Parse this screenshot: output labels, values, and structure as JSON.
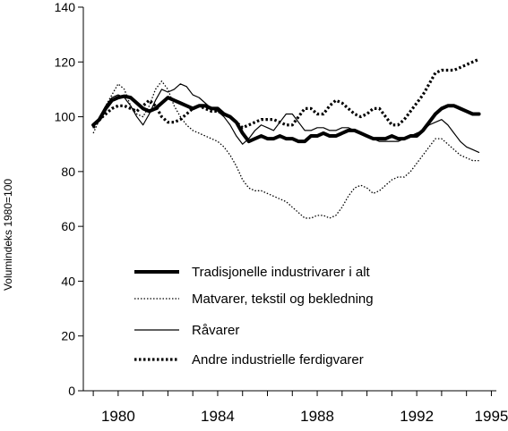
{
  "chart_data": {
    "type": "line",
    "title": "",
    "xlabel": "",
    "ylabel": "Volumindeks 1980=100",
    "xlim": [
      1978.6,
      1995.2
    ],
    "ylim": [
      0,
      140
    ],
    "x_ticks": [
      1980,
      1984,
      1988,
      1992,
      1995
    ],
    "y_ticks": [
      0,
      20,
      40,
      60,
      80,
      100,
      120,
      140
    ],
    "grid": false,
    "legend_position": "lower-center",
    "series": [
      {
        "name": "Tradisjonelle industrivarer i alt",
        "style": "thick-solid",
        "color": "#000000",
        "points": [
          [
            1979.0,
            97
          ],
          [
            1979.25,
            99
          ],
          [
            1979.5,
            103
          ],
          [
            1979.75,
            106
          ],
          [
            1980.0,
            107
          ],
          [
            1980.25,
            107.5
          ],
          [
            1980.5,
            107
          ],
          [
            1980.75,
            105
          ],
          [
            1981.0,
            103
          ],
          [
            1981.25,
            102
          ],
          [
            1981.5,
            103
          ],
          [
            1981.75,
            105
          ],
          [
            1982.0,
            107
          ],
          [
            1982.25,
            106
          ],
          [
            1982.5,
            105
          ],
          [
            1982.75,
            104
          ],
          [
            1983.0,
            103
          ],
          [
            1983.25,
            104
          ],
          [
            1983.5,
            104
          ],
          [
            1983.75,
            103
          ],
          [
            1984.0,
            103
          ],
          [
            1984.25,
            101
          ],
          [
            1984.5,
            100
          ],
          [
            1984.75,
            98
          ],
          [
            1985.0,
            94
          ],
          [
            1985.25,
            91
          ],
          [
            1985.5,
            92
          ],
          [
            1985.75,
            93
          ],
          [
            1986.0,
            92
          ],
          [
            1986.25,
            92
          ],
          [
            1986.5,
            93
          ],
          [
            1986.75,
            92
          ],
          [
            1987.0,
            92
          ],
          [
            1987.25,
            91
          ],
          [
            1987.5,
            91
          ],
          [
            1987.75,
            93
          ],
          [
            1988.0,
            93
          ],
          [
            1988.25,
            94
          ],
          [
            1988.5,
            93
          ],
          [
            1988.75,
            93
          ],
          [
            1989.0,
            94
          ],
          [
            1989.25,
            95
          ],
          [
            1989.5,
            95
          ],
          [
            1989.75,
            94
          ],
          [
            1990.0,
            93
          ],
          [
            1990.25,
            92
          ],
          [
            1990.5,
            92
          ],
          [
            1990.75,
            92
          ],
          [
            1991.0,
            93
          ],
          [
            1991.25,
            92
          ],
          [
            1991.5,
            92
          ],
          [
            1991.75,
            93
          ],
          [
            1992.0,
            93
          ],
          [
            1992.25,
            95
          ],
          [
            1992.5,
            98
          ],
          [
            1992.75,
            101
          ],
          [
            1993.0,
            103
          ],
          [
            1993.25,
            104
          ],
          [
            1993.5,
            104
          ],
          [
            1993.75,
            103
          ],
          [
            1994.0,
            102
          ],
          [
            1994.25,
            101
          ],
          [
            1994.5,
            101
          ]
        ]
      },
      {
        "name": "Matvarer, tekstil og bekledning",
        "style": "thin-dotted",
        "color": "#000000",
        "points": [
          [
            1979.0,
            94
          ],
          [
            1979.25,
            99
          ],
          [
            1979.5,
            104
          ],
          [
            1979.75,
            108
          ],
          [
            1980.0,
            112
          ],
          [
            1980.25,
            110
          ],
          [
            1980.5,
            104
          ],
          [
            1980.75,
            101
          ],
          [
            1981.0,
            100
          ],
          [
            1981.25,
            104
          ],
          [
            1981.5,
            110
          ],
          [
            1981.75,
            113
          ],
          [
            1982.0,
            110
          ],
          [
            1982.25,
            104
          ],
          [
            1982.5,
            100
          ],
          [
            1982.75,
            97
          ],
          [
            1983.0,
            95
          ],
          [
            1983.25,
            94
          ],
          [
            1983.5,
            93
          ],
          [
            1983.75,
            92
          ],
          [
            1984.0,
            91
          ],
          [
            1984.25,
            89
          ],
          [
            1984.5,
            86
          ],
          [
            1984.75,
            82
          ],
          [
            1985.0,
            77
          ],
          [
            1985.25,
            74
          ],
          [
            1985.5,
            73
          ],
          [
            1985.75,
            73
          ],
          [
            1986.0,
            72
          ],
          [
            1986.25,
            71
          ],
          [
            1986.5,
            70
          ],
          [
            1986.75,
            69
          ],
          [
            1987.0,
            67
          ],
          [
            1987.25,
            65
          ],
          [
            1987.5,
            63
          ],
          [
            1987.75,
            63
          ],
          [
            1988.0,
            64
          ],
          [
            1988.25,
            64
          ],
          [
            1988.5,
            63
          ],
          [
            1988.75,
            64
          ],
          [
            1989.0,
            67
          ],
          [
            1989.25,
            71
          ],
          [
            1989.5,
            74
          ],
          [
            1989.75,
            75
          ],
          [
            1990.0,
            74
          ],
          [
            1990.25,
            72
          ],
          [
            1990.5,
            73
          ],
          [
            1990.75,
            75
          ],
          [
            1991.0,
            77
          ],
          [
            1991.25,
            78
          ],
          [
            1991.5,
            78
          ],
          [
            1991.75,
            80
          ],
          [
            1992.0,
            83
          ],
          [
            1992.25,
            86
          ],
          [
            1992.5,
            89
          ],
          [
            1992.75,
            92
          ],
          [
            1993.0,
            92
          ],
          [
            1993.25,
            90
          ],
          [
            1993.5,
            88
          ],
          [
            1993.75,
            86
          ],
          [
            1994.0,
            85
          ],
          [
            1994.25,
            84
          ],
          [
            1994.5,
            84
          ]
        ]
      },
      {
        "name": "Råvarer",
        "style": "thin-solid",
        "color": "#000000",
        "points": [
          [
            1979.0,
            96
          ],
          [
            1979.25,
            100
          ],
          [
            1979.5,
            104
          ],
          [
            1979.75,
            107
          ],
          [
            1980.0,
            108
          ],
          [
            1980.25,
            107
          ],
          [
            1980.5,
            104
          ],
          [
            1980.75,
            100
          ],
          [
            1981.0,
            97
          ],
          [
            1981.25,
            101
          ],
          [
            1981.5,
            106
          ],
          [
            1981.75,
            110
          ],
          [
            1982.0,
            109
          ],
          [
            1982.25,
            110
          ],
          [
            1982.5,
            112
          ],
          [
            1982.75,
            111
          ],
          [
            1983.0,
            108
          ],
          [
            1983.25,
            107
          ],
          [
            1983.5,
            105
          ],
          [
            1983.75,
            103
          ],
          [
            1984.0,
            102
          ],
          [
            1984.25,
            100
          ],
          [
            1984.5,
            97
          ],
          [
            1984.75,
            93
          ],
          [
            1985.0,
            90
          ],
          [
            1985.25,
            92
          ],
          [
            1985.5,
            95
          ],
          [
            1985.75,
            97
          ],
          [
            1986.0,
            96
          ],
          [
            1986.25,
            95
          ],
          [
            1986.5,
            98
          ],
          [
            1986.75,
            101
          ],
          [
            1987.0,
            101
          ],
          [
            1987.25,
            98
          ],
          [
            1987.5,
            95
          ],
          [
            1987.75,
            95
          ],
          [
            1988.0,
            96
          ],
          [
            1988.25,
            96
          ],
          [
            1988.5,
            95
          ],
          [
            1988.75,
            95
          ],
          [
            1989.0,
            96
          ],
          [
            1989.25,
            96
          ],
          [
            1989.5,
            95
          ],
          [
            1989.75,
            94
          ],
          [
            1990.0,
            93
          ],
          [
            1990.25,
            92
          ],
          [
            1990.5,
            91
          ],
          [
            1990.75,
            91
          ],
          [
            1991.0,
            91
          ],
          [
            1991.25,
            91
          ],
          [
            1991.5,
            92
          ],
          [
            1991.75,
            93
          ],
          [
            1992.0,
            94
          ],
          [
            1992.25,
            95
          ],
          [
            1992.5,
            97
          ],
          [
            1992.75,
            98
          ],
          [
            1993.0,
            99
          ],
          [
            1993.25,
            97
          ],
          [
            1993.5,
            94
          ],
          [
            1993.75,
            91
          ],
          [
            1994.0,
            89
          ],
          [
            1994.25,
            88
          ],
          [
            1994.5,
            87
          ]
        ]
      },
      {
        "name": "Andre industrielle ferdigvarer",
        "style": "thick-dotted",
        "color": "#000000",
        "points": [
          [
            1979.0,
            96
          ],
          [
            1979.25,
            99
          ],
          [
            1979.5,
            101
          ],
          [
            1979.75,
            103
          ],
          [
            1980.0,
            104
          ],
          [
            1980.25,
            104
          ],
          [
            1980.5,
            103
          ],
          [
            1980.75,
            102
          ],
          [
            1981.0,
            104
          ],
          [
            1981.25,
            106
          ],
          [
            1981.5,
            104
          ],
          [
            1981.75,
            100
          ],
          [
            1982.0,
            98
          ],
          [
            1982.25,
            98
          ],
          [
            1982.5,
            99
          ],
          [
            1982.75,
            101
          ],
          [
            1983.0,
            103
          ],
          [
            1983.25,
            104
          ],
          [
            1983.5,
            103
          ],
          [
            1983.75,
            102
          ],
          [
            1984.0,
            102
          ],
          [
            1984.25,
            101
          ],
          [
            1984.5,
            100
          ],
          [
            1984.75,
            98
          ],
          [
            1985.0,
            96
          ],
          [
            1985.25,
            97
          ],
          [
            1985.5,
            98
          ],
          [
            1985.75,
            99
          ],
          [
            1986.0,
            99
          ],
          [
            1986.25,
            99
          ],
          [
            1986.5,
            98
          ],
          [
            1986.75,
            97
          ],
          [
            1987.0,
            97
          ],
          [
            1987.25,
            100
          ],
          [
            1987.5,
            103
          ],
          [
            1987.75,
            103
          ],
          [
            1988.0,
            101
          ],
          [
            1988.25,
            101
          ],
          [
            1988.5,
            104
          ],
          [
            1988.75,
            106
          ],
          [
            1989.0,
            105
          ],
          [
            1989.25,
            103
          ],
          [
            1989.5,
            101
          ],
          [
            1989.75,
            100
          ],
          [
            1990.0,
            101
          ],
          [
            1990.25,
            103
          ],
          [
            1990.5,
            103
          ],
          [
            1990.75,
            100
          ],
          [
            1991.0,
            97
          ],
          [
            1991.25,
            97
          ],
          [
            1991.5,
            99
          ],
          [
            1991.75,
            102
          ],
          [
            1992.0,
            105
          ],
          [
            1992.25,
            108
          ],
          [
            1992.5,
            112
          ],
          [
            1992.75,
            116
          ],
          [
            1993.0,
            117
          ],
          [
            1993.25,
            117
          ],
          [
            1993.5,
            117
          ],
          [
            1993.75,
            118
          ],
          [
            1994.0,
            119
          ],
          [
            1994.25,
            120
          ],
          [
            1994.5,
            121
          ]
        ]
      }
    ]
  }
}
